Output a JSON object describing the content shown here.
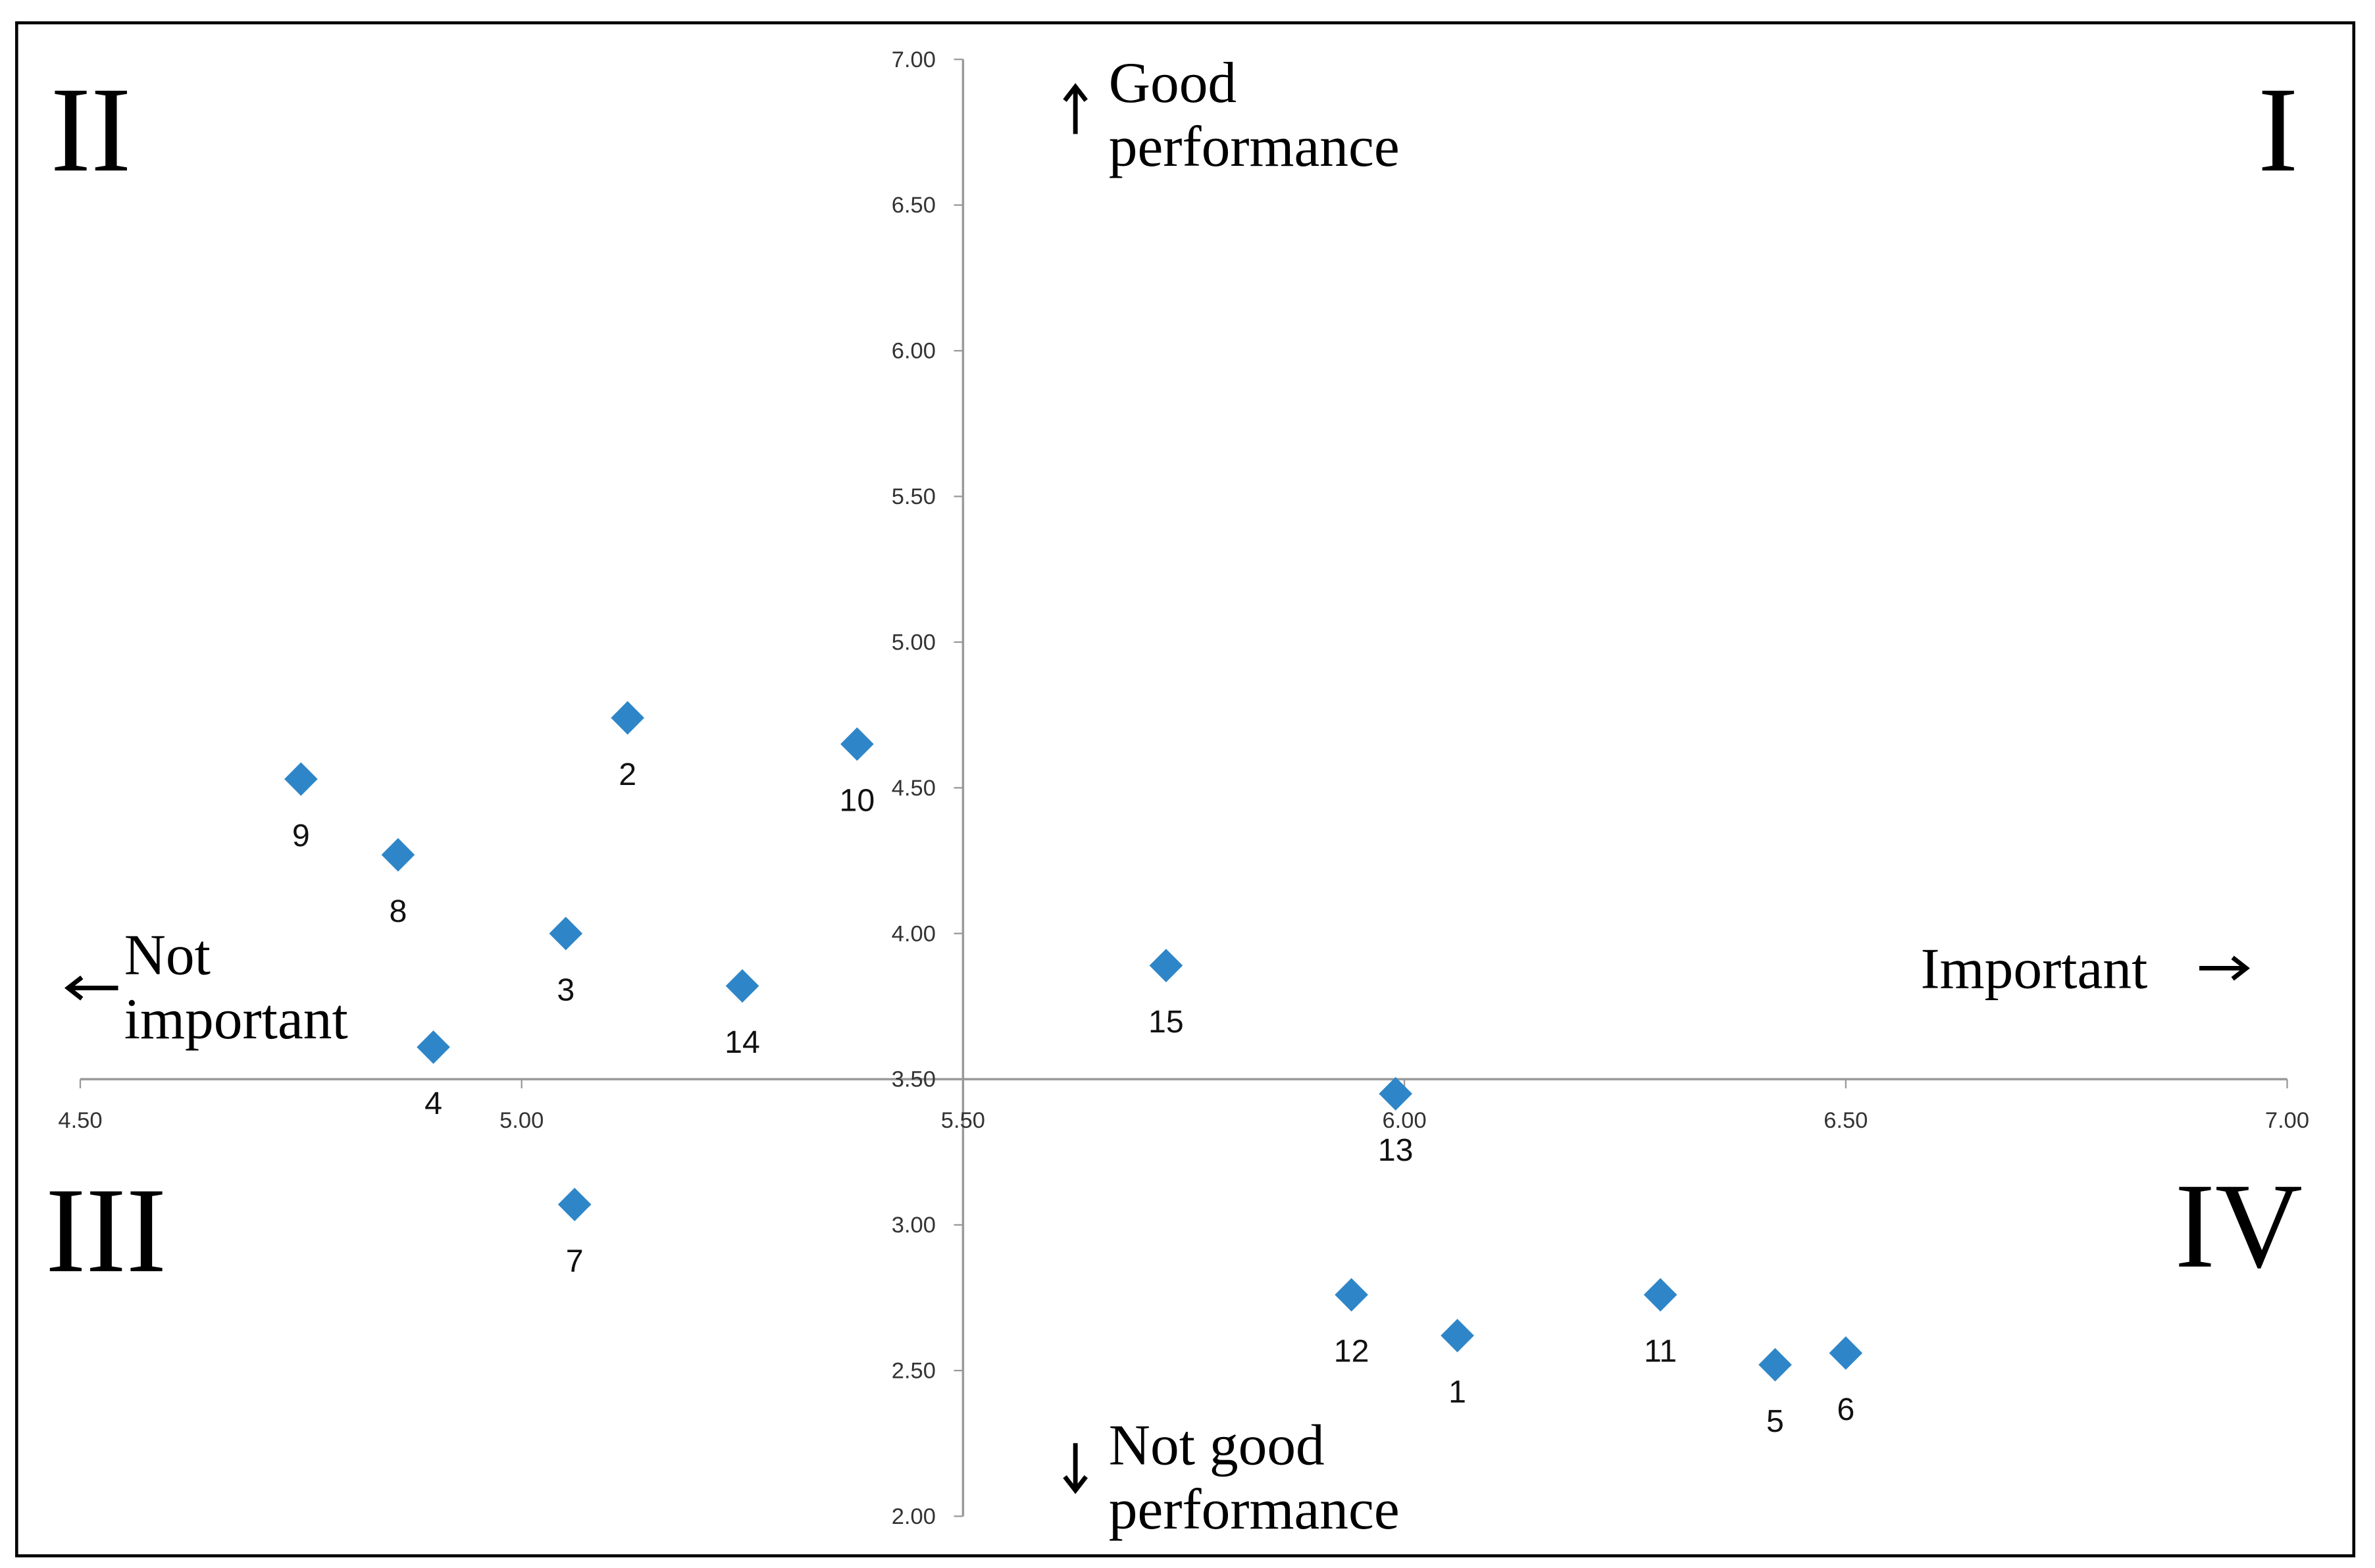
{
  "chart_data": {
    "type": "scatter",
    "xlim": [
      4.5,
      7.0
    ],
    "ylim": [
      2.0,
      7.0
    ],
    "xticks": [
      {
        "value": 4.5,
        "label": "4.50"
      },
      {
        "value": 5.0,
        "label": "5.00"
      },
      {
        "value": 5.5,
        "label": "5.50"
      },
      {
        "value": 6.0,
        "label": "6.00"
      },
      {
        "value": 6.5,
        "label": "6.50"
      },
      {
        "value": 7.0,
        "label": "7.00"
      }
    ],
    "yticks": [
      {
        "value": 2.0,
        "label": "2.00"
      },
      {
        "value": 2.5,
        "label": "2.50"
      },
      {
        "value": 3.0,
        "label": "3.00"
      },
      {
        "value": 3.5,
        "label": "3.50"
      },
      {
        "value": 4.0,
        "label": "4.00"
      },
      {
        "value": 4.5,
        "label": "4.50"
      },
      {
        "value": 5.0,
        "label": "5.00"
      },
      {
        "value": 5.5,
        "label": "5.50"
      },
      {
        "value": 6.0,
        "label": "6.00"
      },
      {
        "value": 6.5,
        "label": "6.50"
      },
      {
        "value": 7.0,
        "label": "7.00"
      }
    ],
    "axis_cross": {
      "x": 5.5,
      "y": 3.5
    },
    "series": [
      {
        "color": "#2e86c8",
        "point_labels": [
          "9",
          "8",
          "2",
          "10",
          "3",
          "14",
          "4",
          "7",
          "15",
          "13",
          "12",
          "1",
          "11",
          "5",
          "6"
        ],
        "x": [
          4.75,
          4.86,
          5.12,
          5.38,
          5.05,
          5.25,
          4.9,
          5.06,
          5.73,
          5.99,
          5.94,
          6.06,
          6.29,
          6.42,
          6.5
        ],
        "values": [
          4.53,
          4.27,
          4.74,
          4.65,
          4.0,
          3.82,
          3.61,
          3.07,
          3.89,
          3.45,
          2.76,
          2.62,
          2.76,
          2.52,
          2.56
        ]
      }
    ],
    "quadrants": {
      "q1": "I",
      "q2": "II",
      "q3": "III",
      "q4": "IV"
    },
    "annotations": {
      "up": [
        "Good",
        "performance"
      ],
      "down": [
        "Not good",
        "performance"
      ],
      "left": [
        "Not",
        "important"
      ],
      "right": "Important"
    }
  }
}
